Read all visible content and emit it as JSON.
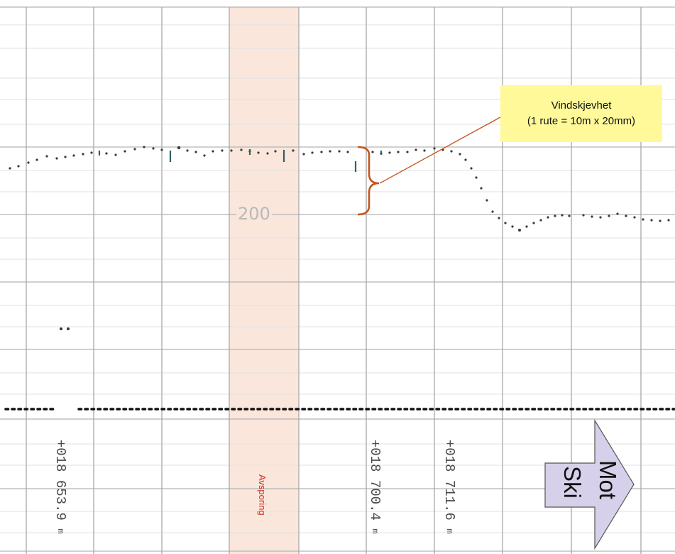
{
  "scale_label": "200",
  "band_label": "Avsporing",
  "callout": {
    "title": "Vindskjevhet",
    "subtitle": "(1 rute = 10m x 20mm)"
  },
  "positions": [
    {
      "text": "+018 653.9",
      "unit": "m"
    },
    {
      "text": "+018 700.4",
      "unit": "m"
    },
    {
      "text": "+018 711.6",
      "unit": "m"
    }
  ],
  "arrow": {
    "word1": "Mot",
    "word2": "Ski"
  },
  "colors": {
    "band": "#fbe6dc",
    "callout_bg": "#fff99a",
    "brace": "#c4531c",
    "arrow_fill": "#d7d0ea",
    "band_label": "#d42a1e"
  }
}
